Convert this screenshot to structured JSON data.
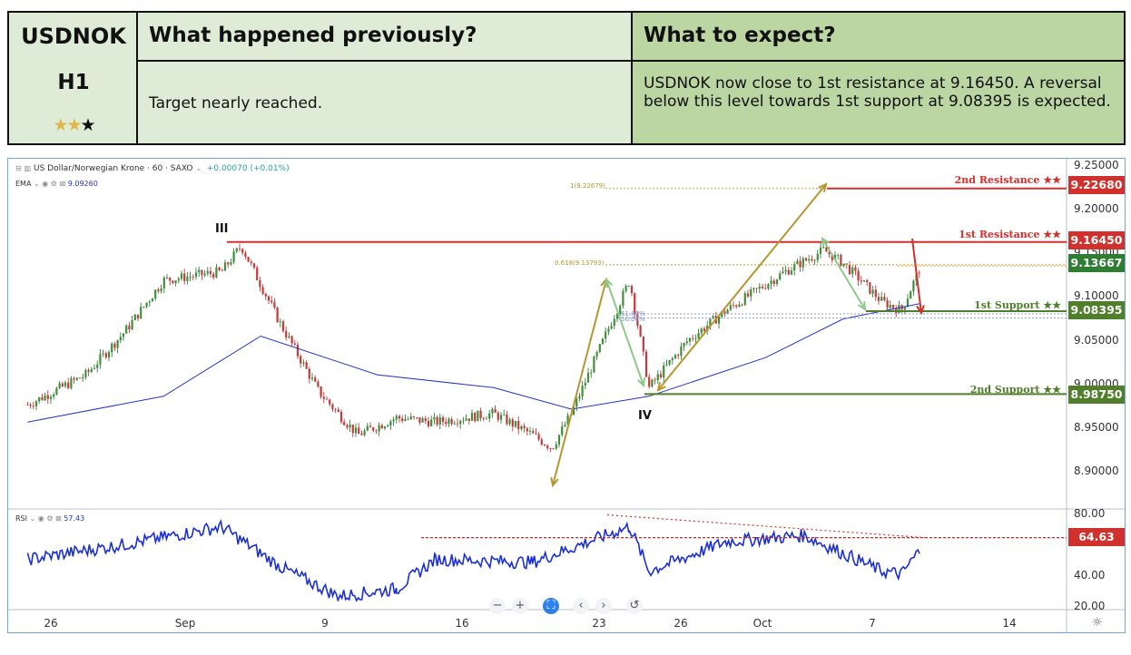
{
  "header": {
    "symbol": "USDNOK",
    "timeframe": "H1",
    "rating_filled": 2,
    "rating_total": 3,
    "previous_title": "What happened previously?",
    "previous_text": "Target nearly reached.",
    "expect_title": "What to expect?",
    "expect_text": "USDNOK now close to 1st resistance at 9.16450. A reversal below this level towards 1st support at 9.08395 is expected."
  },
  "chart_toolbar": {
    "instrument": "US Dollar/Norwegian Krone",
    "interval": "60",
    "exchange": "SAXO",
    "change": "+0.00070 (+0.01%)",
    "ema_label": "EMA",
    "ema_value": "9.09260",
    "rsi_label": "RSI",
    "rsi_value": "57.43"
  },
  "levels": {
    "r2": {
      "label": "2nd Resistance ★★",
      "price": "9.22680",
      "color": "#d0312d"
    },
    "r1": {
      "label": "1st Resistance ★★",
      "price": "9.16450",
      "color": "#d0312d"
    },
    "current": {
      "price": "9.13667",
      "color": "#2e7d32"
    },
    "s1": {
      "label": "1st Support ★★",
      "price": "9.08395",
      "color": "#4f7f2a"
    },
    "s2": {
      "label": "2nd Support ★★",
      "price": "8.98750",
      "color": "#4f7f2a"
    },
    "rsi_level": {
      "value": "64.63",
      "color": "#d0312d"
    }
  },
  "fib_labels": {
    "f1": "1(9.22679)",
    "f618": "0.618(9.13793)",
    "f50a": "61.80%",
    "f50b": "50.00%"
  },
  "wave_labels": {
    "w3": "III",
    "w4": "IV"
  },
  "axes": {
    "price_ticks": [
      "9.25000",
      "9.20000",
      "9.15000",
      "9.10000",
      "9.05000",
      "9.00000",
      "8.95000",
      "8.90000"
    ],
    "rsi_ticks": [
      "80.00",
      "60.00",
      "40.00",
      "20.00"
    ],
    "date_ticks": [
      "26",
      "Sep",
      "9",
      "16",
      "23",
      "26",
      "Oct",
      "7",
      "14"
    ]
  },
  "chart_data": {
    "type": "line",
    "title": "US Dollar/Norwegian Krone · 60 · SAXO",
    "ylim": [
      8.88,
      9.25
    ],
    "rsi_ylim": [
      20,
      80
    ],
    "series": [
      {
        "name": "US Dollar/Norwegian Krone",
        "x": [
          "Aug 23",
          "Aug 26",
          "Aug 28",
          "Aug 30",
          "Sep 2",
          "Sep 3",
          "Sep 5",
          "Sep 7",
          "Sep 9",
          "Sep 11",
          "Sep 13",
          "Sep 16",
          "Sep 18",
          "Sep 19",
          "Sep 20",
          "Sep 23",
          "Sep 24",
          "Sep 26",
          "Sep 28",
          "Oct 1",
          "Oct 3",
          "Oct 4",
          "Oct 6",
          "Oct 7",
          "Oct 8"
        ],
        "values": [
          8.975,
          9.01,
          9.06,
          9.12,
          9.13,
          9.16,
          9.07,
          8.99,
          8.94,
          8.96,
          8.955,
          8.965,
          8.94,
          8.925,
          8.965,
          9.12,
          8.995,
          9.05,
          9.085,
          9.13,
          9.155,
          9.14,
          9.095,
          9.085,
          9.137
        ]
      },
      {
        "name": "EMA",
        "x": [
          "Aug 23",
          "Aug 30",
          "Sep 4",
          "Sep 10",
          "Sep 16",
          "Sep 20",
          "Sep 24",
          "Sep 30",
          "Oct 4",
          "Oct 8"
        ],
        "values": [
          8.955,
          8.985,
          9.055,
          9.01,
          8.995,
          8.97,
          8.985,
          9.03,
          9.075,
          9.093
        ]
      },
      {
        "name": "RSI",
        "x": [
          "Aug 23",
          "Aug 28",
          "Sep 2",
          "Sep 5",
          "Sep 8",
          "Sep 11",
          "Sep 13",
          "Sep 18",
          "Sep 23",
          "Sep 24",
          "Sep 28",
          "Oct 2",
          "Oct 6",
          "Oct 7",
          "Oct 8"
        ],
        "values": [
          50,
          60,
          72,
          45,
          25,
          30,
          50,
          48,
          72,
          42,
          62,
          66,
          42,
          40,
          57
        ]
      }
    ]
  }
}
